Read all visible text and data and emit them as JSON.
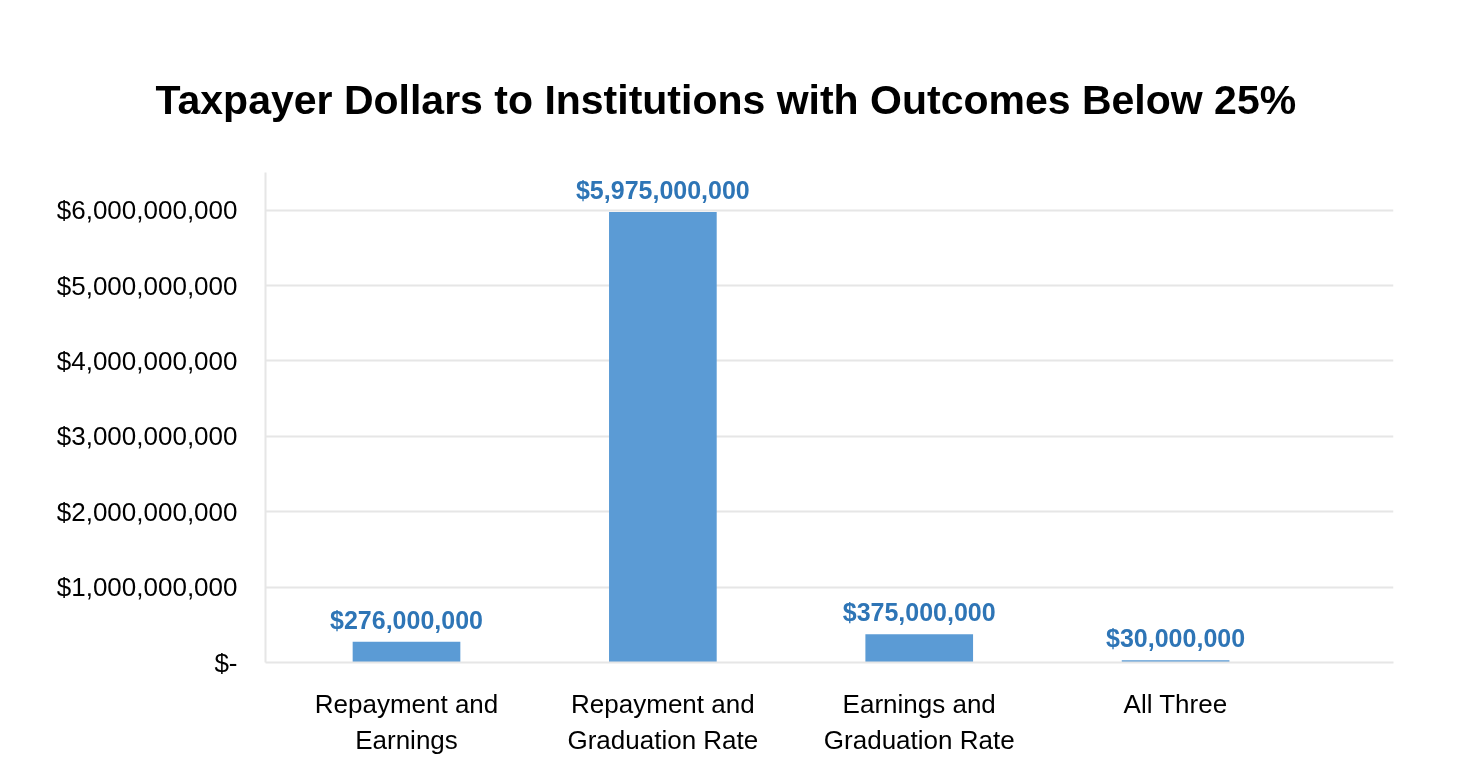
{
  "chart_data": {
    "type": "bar",
    "title": "Taxpayer Dollars to Institutions with Outcomes Below 25%",
    "categories": [
      "Repayment and Earnings",
      "Repayment and Graduation Rate",
      "Earnings and Graduation Rate",
      "All Three"
    ],
    "values": [
      276000000,
      5975000000,
      375000000,
      30000000
    ],
    "color": "#5b9bd5",
    "value_labels": [
      "$276,000,000",
      "$5,975,000,000",
      "$375,000,000",
      "$30,000,000"
    ],
    "ylim": [
      0,
      6500000000
    ],
    "yticks": [
      {
        "value": 0,
        "label": "$-"
      },
      {
        "value": 1000000000,
        "label": "$1,000,000,000"
      },
      {
        "value": 2000000000,
        "label": "$2,000,000,000"
      },
      {
        "value": 3000000000,
        "label": "$3,000,000,000"
      },
      {
        "value": 4000000000,
        "label": "$4,000,000,000"
      },
      {
        "value": 5000000000,
        "label": "$5,000,000,000"
      },
      {
        "value": 6000000000,
        "label": "$6,000,000,000"
      }
    ],
    "grid": "y"
  }
}
